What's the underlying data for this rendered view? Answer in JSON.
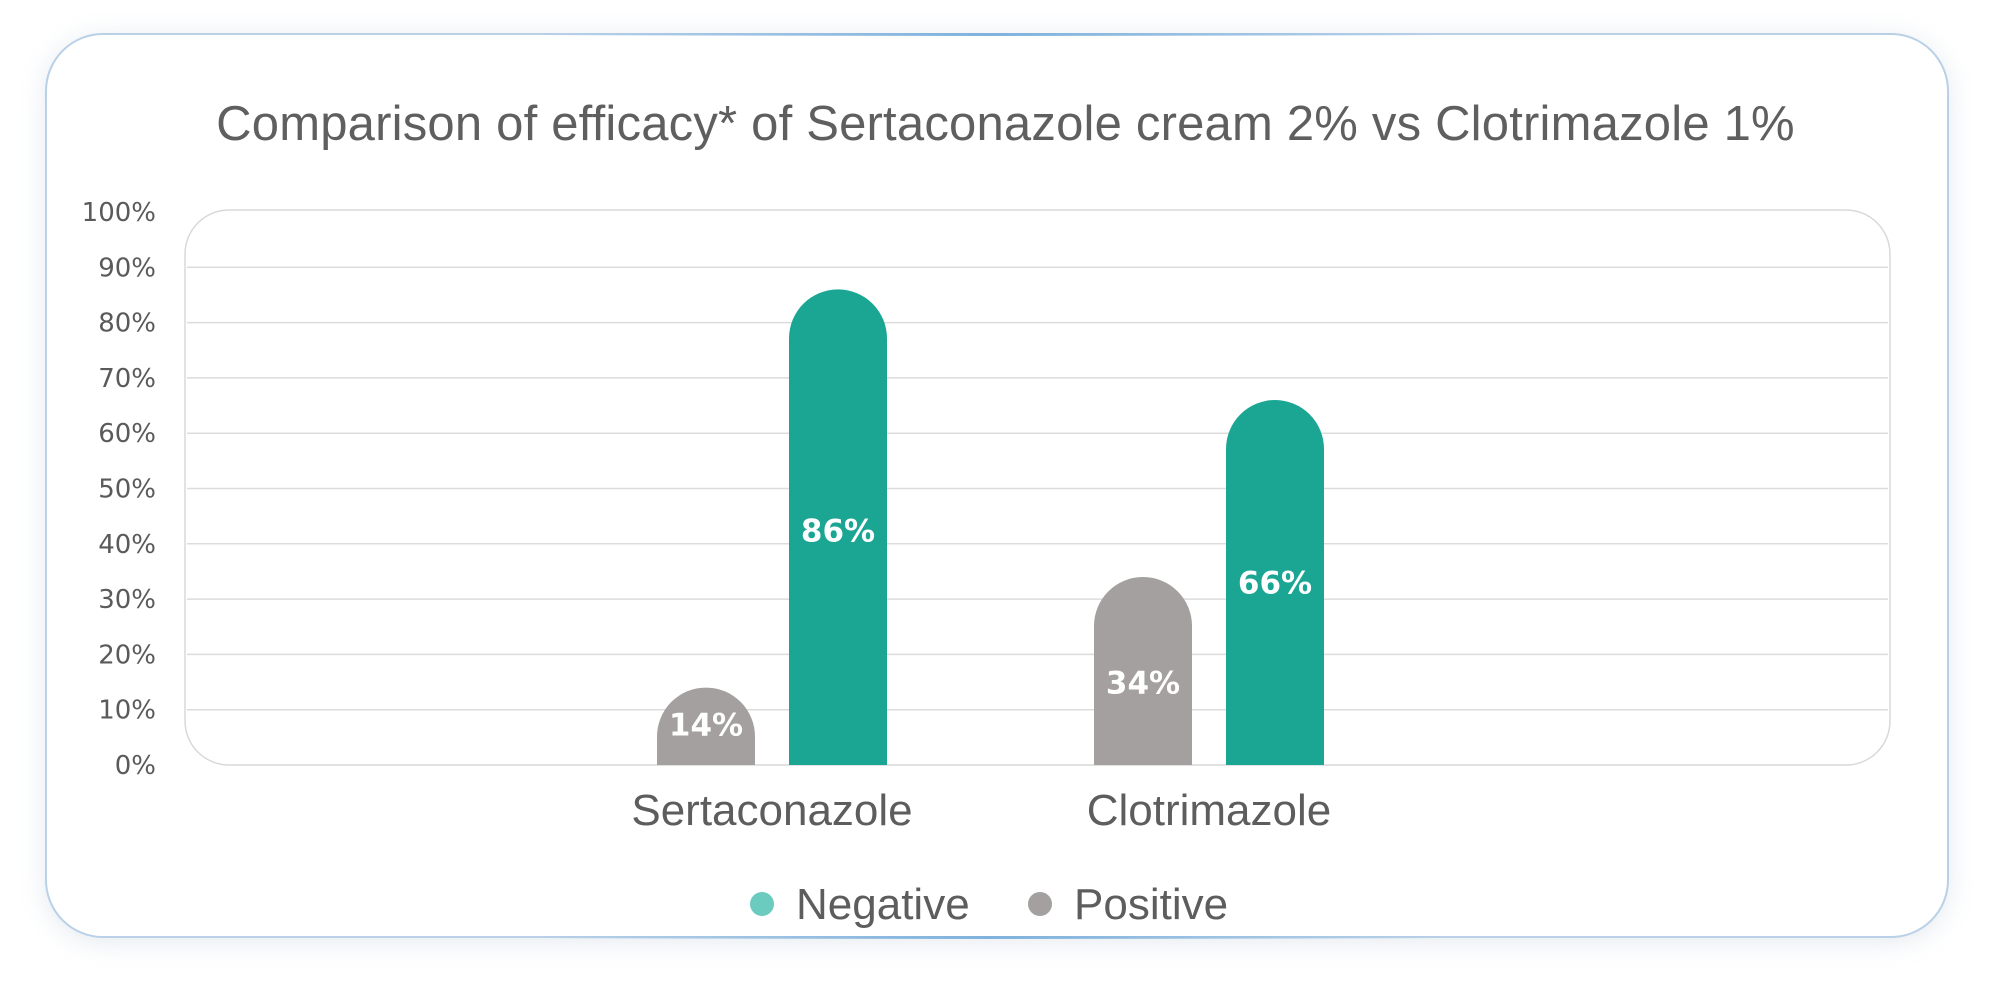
{
  "chart_data": {
    "type": "bar",
    "title": "Comparison of efficacy* of Sertaconazole cream 2% vs Clotrimazole 1%",
    "categories": [
      "Sertaconazole",
      "Clotrimazole"
    ],
    "series": [
      {
        "name": "Positive",
        "values": [
          14,
          34
        ],
        "labels": [
          "14%",
          "34%"
        ],
        "color": "#a3a09f"
      },
      {
        "name": "Negative",
        "values": [
          86,
          66
        ],
        "labels": [
          "86%",
          "66%"
        ],
        "color": "#1ba694"
      }
    ],
    "ylim": [
      0,
      100
    ],
    "yticks": [
      0,
      10,
      20,
      30,
      40,
      50,
      60,
      70,
      80,
      90,
      100
    ],
    "ytick_labels": [
      "0%",
      "10%",
      "20%",
      "30%",
      "40%",
      "50%",
      "60%",
      "70%",
      "80%",
      "90%",
      "100%"
    ],
    "grid": true,
    "legend": {
      "position": "bottom",
      "entries": [
        {
          "label": "Negative",
          "color": "#6ccbbf"
        },
        {
          "label": "Positive",
          "color": "#a3a09f"
        }
      ]
    }
  }
}
